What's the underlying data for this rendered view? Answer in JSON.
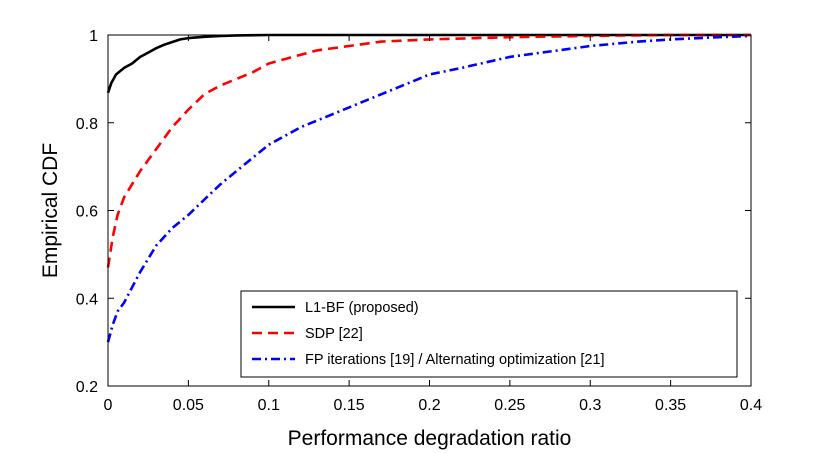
{
  "chart_data": {
    "type": "line",
    "title": "",
    "xlabel": "Performance degradation ratio",
    "ylabel": "Empirical CDF",
    "xlim": [
      0,
      0.4
    ],
    "ylim": [
      0.2,
      1.0
    ],
    "xticks": [
      0,
      0.05,
      0.1,
      0.15,
      0.2,
      0.25,
      0.3,
      0.35,
      0.4
    ],
    "xtick_labels": [
      "0",
      "0.05",
      "0.1",
      "0.15",
      "0.2",
      "0.25",
      "0.3",
      "0.35",
      "0.4"
    ],
    "yticks": [
      0.2,
      0.4,
      0.6,
      0.8,
      1.0
    ],
    "ytick_labels": [
      "0.2",
      "0.4",
      "0.6",
      "0.8",
      "1"
    ],
    "grid": false,
    "legend_position": "bottom-right",
    "series": [
      {
        "name": "L1-BF (proposed)",
        "color": "#000000",
        "style": "solid",
        "x": [
          0,
          0.002,
          0.005,
          0.01,
          0.015,
          0.02,
          0.025,
          0.03,
          0.035,
          0.04,
          0.045,
          0.05,
          0.06,
          0.07,
          0.08,
          0.1,
          0.12,
          0.15,
          0.2,
          0.3,
          0.4
        ],
        "y": [
          0.868,
          0.89,
          0.91,
          0.925,
          0.935,
          0.95,
          0.96,
          0.97,
          0.978,
          0.984,
          0.99,
          0.993,
          0.996,
          0.998,
          0.999,
          1.0,
          1.0,
          1.0,
          1.0,
          1.0,
          1.0
        ]
      },
      {
        "name": "SDP [22]",
        "color": "#ff0000",
        "style": "dashed",
        "x": [
          0,
          0.003,
          0.006,
          0.01,
          0.015,
          0.02,
          0.03,
          0.04,
          0.05,
          0.06,
          0.07,
          0.08,
          0.09,
          0.1,
          0.11,
          0.12,
          0.13,
          0.15,
          0.17,
          0.2,
          0.25,
          0.3,
          0.35,
          0.4
        ],
        "y": [
          0.47,
          0.54,
          0.59,
          0.63,
          0.66,
          0.69,
          0.74,
          0.79,
          0.83,
          0.865,
          0.885,
          0.9,
          0.915,
          0.935,
          0.945,
          0.955,
          0.965,
          0.975,
          0.985,
          0.99,
          0.995,
          0.998,
          1.0,
          1.0
        ]
      },
      {
        "name": "FP iterations [19] / Alternating optimization [21]",
        "color": "#0000ff",
        "style": "dashdot",
        "x": [
          0,
          0.003,
          0.006,
          0.01,
          0.02,
          0.03,
          0.04,
          0.05,
          0.06,
          0.07,
          0.08,
          0.09,
          0.1,
          0.12,
          0.14,
          0.16,
          0.18,
          0.2,
          0.22,
          0.25,
          0.28,
          0.3,
          0.33,
          0.35,
          0.38,
          0.4
        ],
        "y": [
          0.3,
          0.34,
          0.37,
          0.39,
          0.46,
          0.52,
          0.56,
          0.59,
          0.625,
          0.66,
          0.69,
          0.72,
          0.75,
          0.79,
          0.82,
          0.85,
          0.88,
          0.91,
          0.925,
          0.95,
          0.965,
          0.975,
          0.985,
          0.99,
          0.995,
          0.998
        ]
      }
    ]
  }
}
